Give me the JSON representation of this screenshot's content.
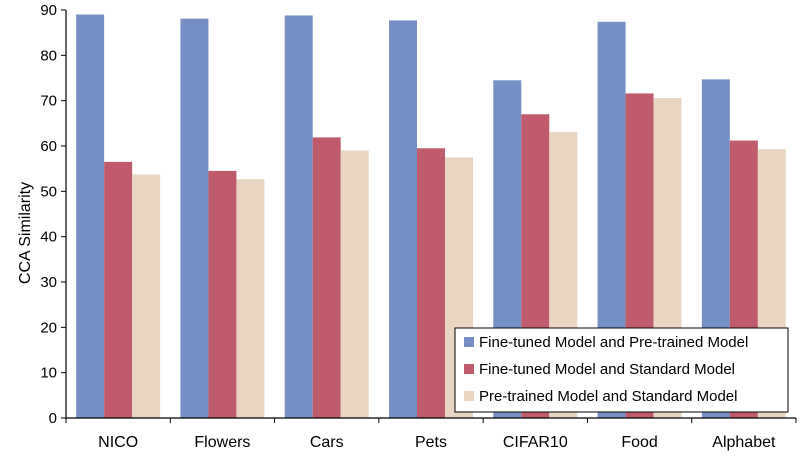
{
  "chart_data": {
    "type": "bar",
    "title": "",
    "xlabel": "",
    "ylabel": "CCA  Similarity",
    "ylim": [
      0,
      90
    ],
    "yticks": [
      0,
      10,
      20,
      30,
      40,
      50,
      60,
      70,
      80,
      90
    ],
    "grid": false,
    "legend_position": "bottom-right",
    "categories": [
      "NICO",
      "Flowers",
      "Cars",
      "Pets",
      "CIFAR10",
      "Food",
      "Alphabet"
    ],
    "series": [
      {
        "name": "Fine-tuned Model and Pre-trained Model",
        "color": "#7690C6",
        "values": [
          89.0,
          88.1,
          88.8,
          87.7,
          74.5,
          87.4,
          74.7
        ]
      },
      {
        "name": "Fine-tuned Model and Standard Model",
        "color": "#C05B6C",
        "values": [
          56.5,
          54.5,
          61.9,
          59.5,
          67.0,
          71.6,
          61.2
        ]
      },
      {
        "name": "Pre-trained Model and Standard Model",
        "color": "#E8D6C3",
        "values": [
          53.7,
          52.7,
          59.0,
          57.5,
          63.1,
          70.6,
          59.3
        ]
      }
    ]
  }
}
